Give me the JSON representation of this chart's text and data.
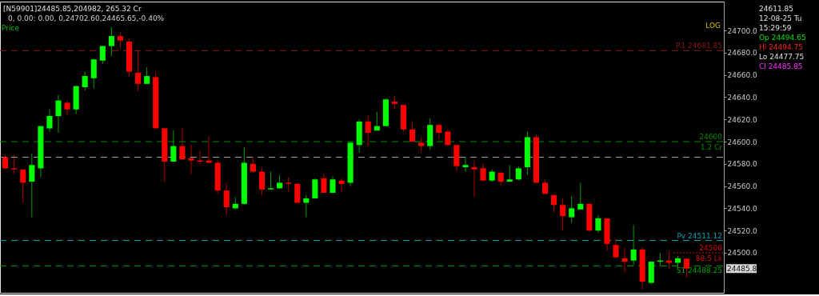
{
  "chart_data": {
    "type": "candlestick",
    "categories": [
      null,
      null,
      null,
      null,
      null,
      null,
      null,
      null,
      null,
      null,
      null,
      null,
      null,
      null,
      null,
      null,
      null,
      null,
      null,
      null,
      null,
      null,
      null,
      null,
      null,
      null,
      null,
      null,
      null,
      null,
      null,
      null,
      null,
      null,
      null,
      null,
      null,
      null,
      null,
      null,
      null,
      null,
      null,
      null,
      null,
      null,
      null,
      null,
      null,
      null,
      null,
      null,
      null,
      null,
      null,
      null,
      null,
      null,
      null,
      null,
      null,
      null,
      null,
      null,
      null,
      null,
      null,
      null,
      null,
      null,
      null,
      null,
      null,
      null,
      null,
      null,
      null,
      null
    ],
    "ohlc": [
      [
        24586,
        24588,
        24575,
        24576
      ],
      [
        24576,
        24588,
        24571,
        24575
      ],
      [
        24575,
        24575,
        24545,
        24563
      ],
      [
        24564,
        24589,
        24532,
        24579
      ],
      [
        24576,
        24614,
        24568,
        24614
      ],
      [
        24612,
        24629,
        24609,
        24623
      ],
      [
        24623,
        24642,
        24608,
        24637
      ],
      [
        24635,
        24637,
        24624,
        24629
      ],
      [
        24629,
        24650,
        24625,
        24650
      ],
      [
        24649,
        24663,
        24646,
        24659
      ],
      [
        24657,
        24674,
        24648,
        24674
      ],
      [
        24673,
        24686,
        24670,
        24686
      ],
      [
        24686,
        24703,
        24677,
        24695
      ],
      [
        24695,
        24698,
        24684,
        24691
      ],
      [
        24690,
        24692,
        24658,
        24663
      ],
      [
        24662,
        24683,
        24645,
        24652
      ],
      [
        24652,
        24667,
        24652,
        24659
      ],
      [
        24658,
        24663,
        24612,
        24612
      ],
      [
        24612,
        24612,
        24564,
        24582
      ],
      [
        24582,
        24610,
        24582,
        24596
      ],
      [
        24596,
        24612,
        24584,
        24584
      ],
      [
        24585,
        24597,
        24571,
        24583
      ],
      [
        24583,
        24592,
        24579,
        24582
      ],
      [
        24583,
        24605,
        24581,
        24581
      ],
      [
        24581,
        24583,
        24553,
        24556
      ],
      [
        24556,
        24563,
        24534,
        24541
      ],
      [
        24540,
        24550,
        24539,
        24544
      ],
      [
        24544,
        24595,
        24543,
        24581
      ],
      [
        24580,
        24586,
        24572,
        24573
      ],
      [
        24573,
        24576,
        24552,
        24557
      ],
      [
        24557,
        24573,
        24557,
        24558
      ],
      [
        24558,
        24570,
        24558,
        24563
      ],
      [
        24563,
        24568,
        24555,
        24562
      ],
      [
        24562,
        24563,
        24545,
        24545
      ],
      [
        24545,
        24552,
        24532,
        24549
      ],
      [
        24549,
        24567,
        24549,
        24566
      ],
      [
        24567,
        24571,
        24554,
        24554
      ],
      [
        24554,
        24569,
        24554,
        24566
      ],
      [
        24565,
        24567,
        24555,
        24562
      ],
      [
        24563,
        24600,
        24560,
        24599
      ],
      [
        24597,
        24620,
        24590,
        24618
      ],
      [
        24618,
        24624,
        24596,
        24608
      ],
      [
        24610,
        24627,
        24610,
        24614
      ],
      [
        24614,
        24639,
        24614,
        24638
      ],
      [
        24636,
        24641,
        24629,
        24634
      ],
      [
        24633,
        24633,
        24609,
        24611
      ],
      [
        24611,
        24617,
        24600,
        24600
      ],
      [
        24599,
        24604,
        24591,
        24596
      ],
      [
        24596,
        24621,
        24593,
        24615
      ],
      [
        24615,
        24616,
        24602,
        24608
      ],
      [
        24609,
        24611,
        24597,
        24597
      ],
      [
        24597,
        24597,
        24573,
        24578
      ],
      [
        24577,
        24586,
        24573,
        24579
      ],
      [
        24577,
        24583,
        24550,
        24575
      ],
      [
        24576,
        24580,
        24565,
        24565
      ],
      [
        24565,
        24575,
        24564,
        24573
      ],
      [
        24572,
        24573,
        24560,
        24564
      ],
      [
        24564,
        24579,
        24564,
        24566
      ],
      [
        24566,
        24578,
        24565,
        24576
      ],
      [
        24577,
        24609,
        24570,
        24604
      ],
      [
        24604,
        24607,
        24563,
        24563
      ],
      [
        24563,
        24565,
        24553,
        24553
      ],
      [
        24552,
        24552,
        24536,
        24543
      ],
      [
        24543,
        24549,
        24520,
        24533
      ],
      [
        24532,
        24551,
        24527,
        24540
      ],
      [
        24539,
        24563,
        24539,
        24544
      ],
      [
        24544,
        24544,
        24519,
        24520
      ],
      [
        24520,
        24534,
        24518,
        24531
      ],
      [
        24531,
        24531,
        24502,
        24508
      ],
      [
        24507,
        24512,
        24495,
        24496
      ],
      [
        24495,
        24504,
        24482,
        24492
      ],
      [
        24493,
        24525,
        24489,
        24503
      ],
      [
        24503,
        24505,
        24467,
        24474
      ],
      [
        24473,
        24492,
        24472,
        24492
      ],
      [
        24492,
        24500,
        24488,
        24493
      ],
      [
        24493,
        24501,
        24486,
        24491
      ],
      [
        24491,
        24497,
        24486,
        24495
      ],
      [
        24494.65,
        24494.75,
        24477.75,
        24485.85
      ]
    ],
    "ylim": [
      24464,
      24726
    ],
    "yticks": [
      {
        "value": 24500,
        "label": "24500.0"
      },
      {
        "value": 24520,
        "label": "24520.0"
      },
      {
        "value": 24540,
        "label": "24540.0"
      },
      {
        "value": 24560,
        "label": "24560.0"
      },
      {
        "value": 24580,
        "label": "24580.0"
      },
      {
        "value": 24600,
        "label": "24600.0"
      },
      {
        "value": 24620,
        "label": "24620.0"
      },
      {
        "value": 24640,
        "label": "24640.0"
      },
      {
        "value": 24660,
        "label": "24660.0"
      },
      {
        "value": 24680,
        "label": "24680.0"
      },
      {
        "value": 24700,
        "label": "24700.0"
      }
    ],
    "tick_labels": "y",
    "grid": false,
    "ref_lines": [
      {
        "axis": "y",
        "value": 24681.85,
        "label": "R1 24681.85",
        "color": "#8b1a1a",
        "line_style": "dashed"
      },
      {
        "axis": "y",
        "value": 24600,
        "label": "24600",
        "color": "#008c00",
        "line_style": "dashed"
      },
      {
        "axis": "y",
        "value": 24586,
        "color": "#a0a0a0",
        "line_style": "dashed"
      },
      {
        "axis": "y",
        "value": 24511.12,
        "label": "Pv 24511.12",
        "color": "#10a0b0",
        "line_style": "dashed"
      },
      {
        "axis": "y",
        "value": 24500,
        "label": "24500",
        "color": "#d01010",
        "line_style": "dotted"
      },
      {
        "axis": "y",
        "value": 24488.25,
        "label": "S1 24488.25",
        "color": "#00a000",
        "line_style": "dashed"
      }
    ],
    "annotations": [
      "[N59901]24485.85,204982, 265.32 Cr",
      "0, 0.00: 0.00, 0,24702.60,24465.65,-0.40%",
      "Price",
      "LOG",
      "24611.85",
      "12-08-25 Tu",
      "15:29:59",
      "Op 24494.65",
      "Hi 24494.75",
      "Lo 24477.75",
      "Cl 24485.85",
      "24485.8",
      {
        "text": "1.2 Cr",
        "y": 24600
      },
      {
        "text": "88.5 Lk",
        "y": 24500
      }
    ]
  }
}
